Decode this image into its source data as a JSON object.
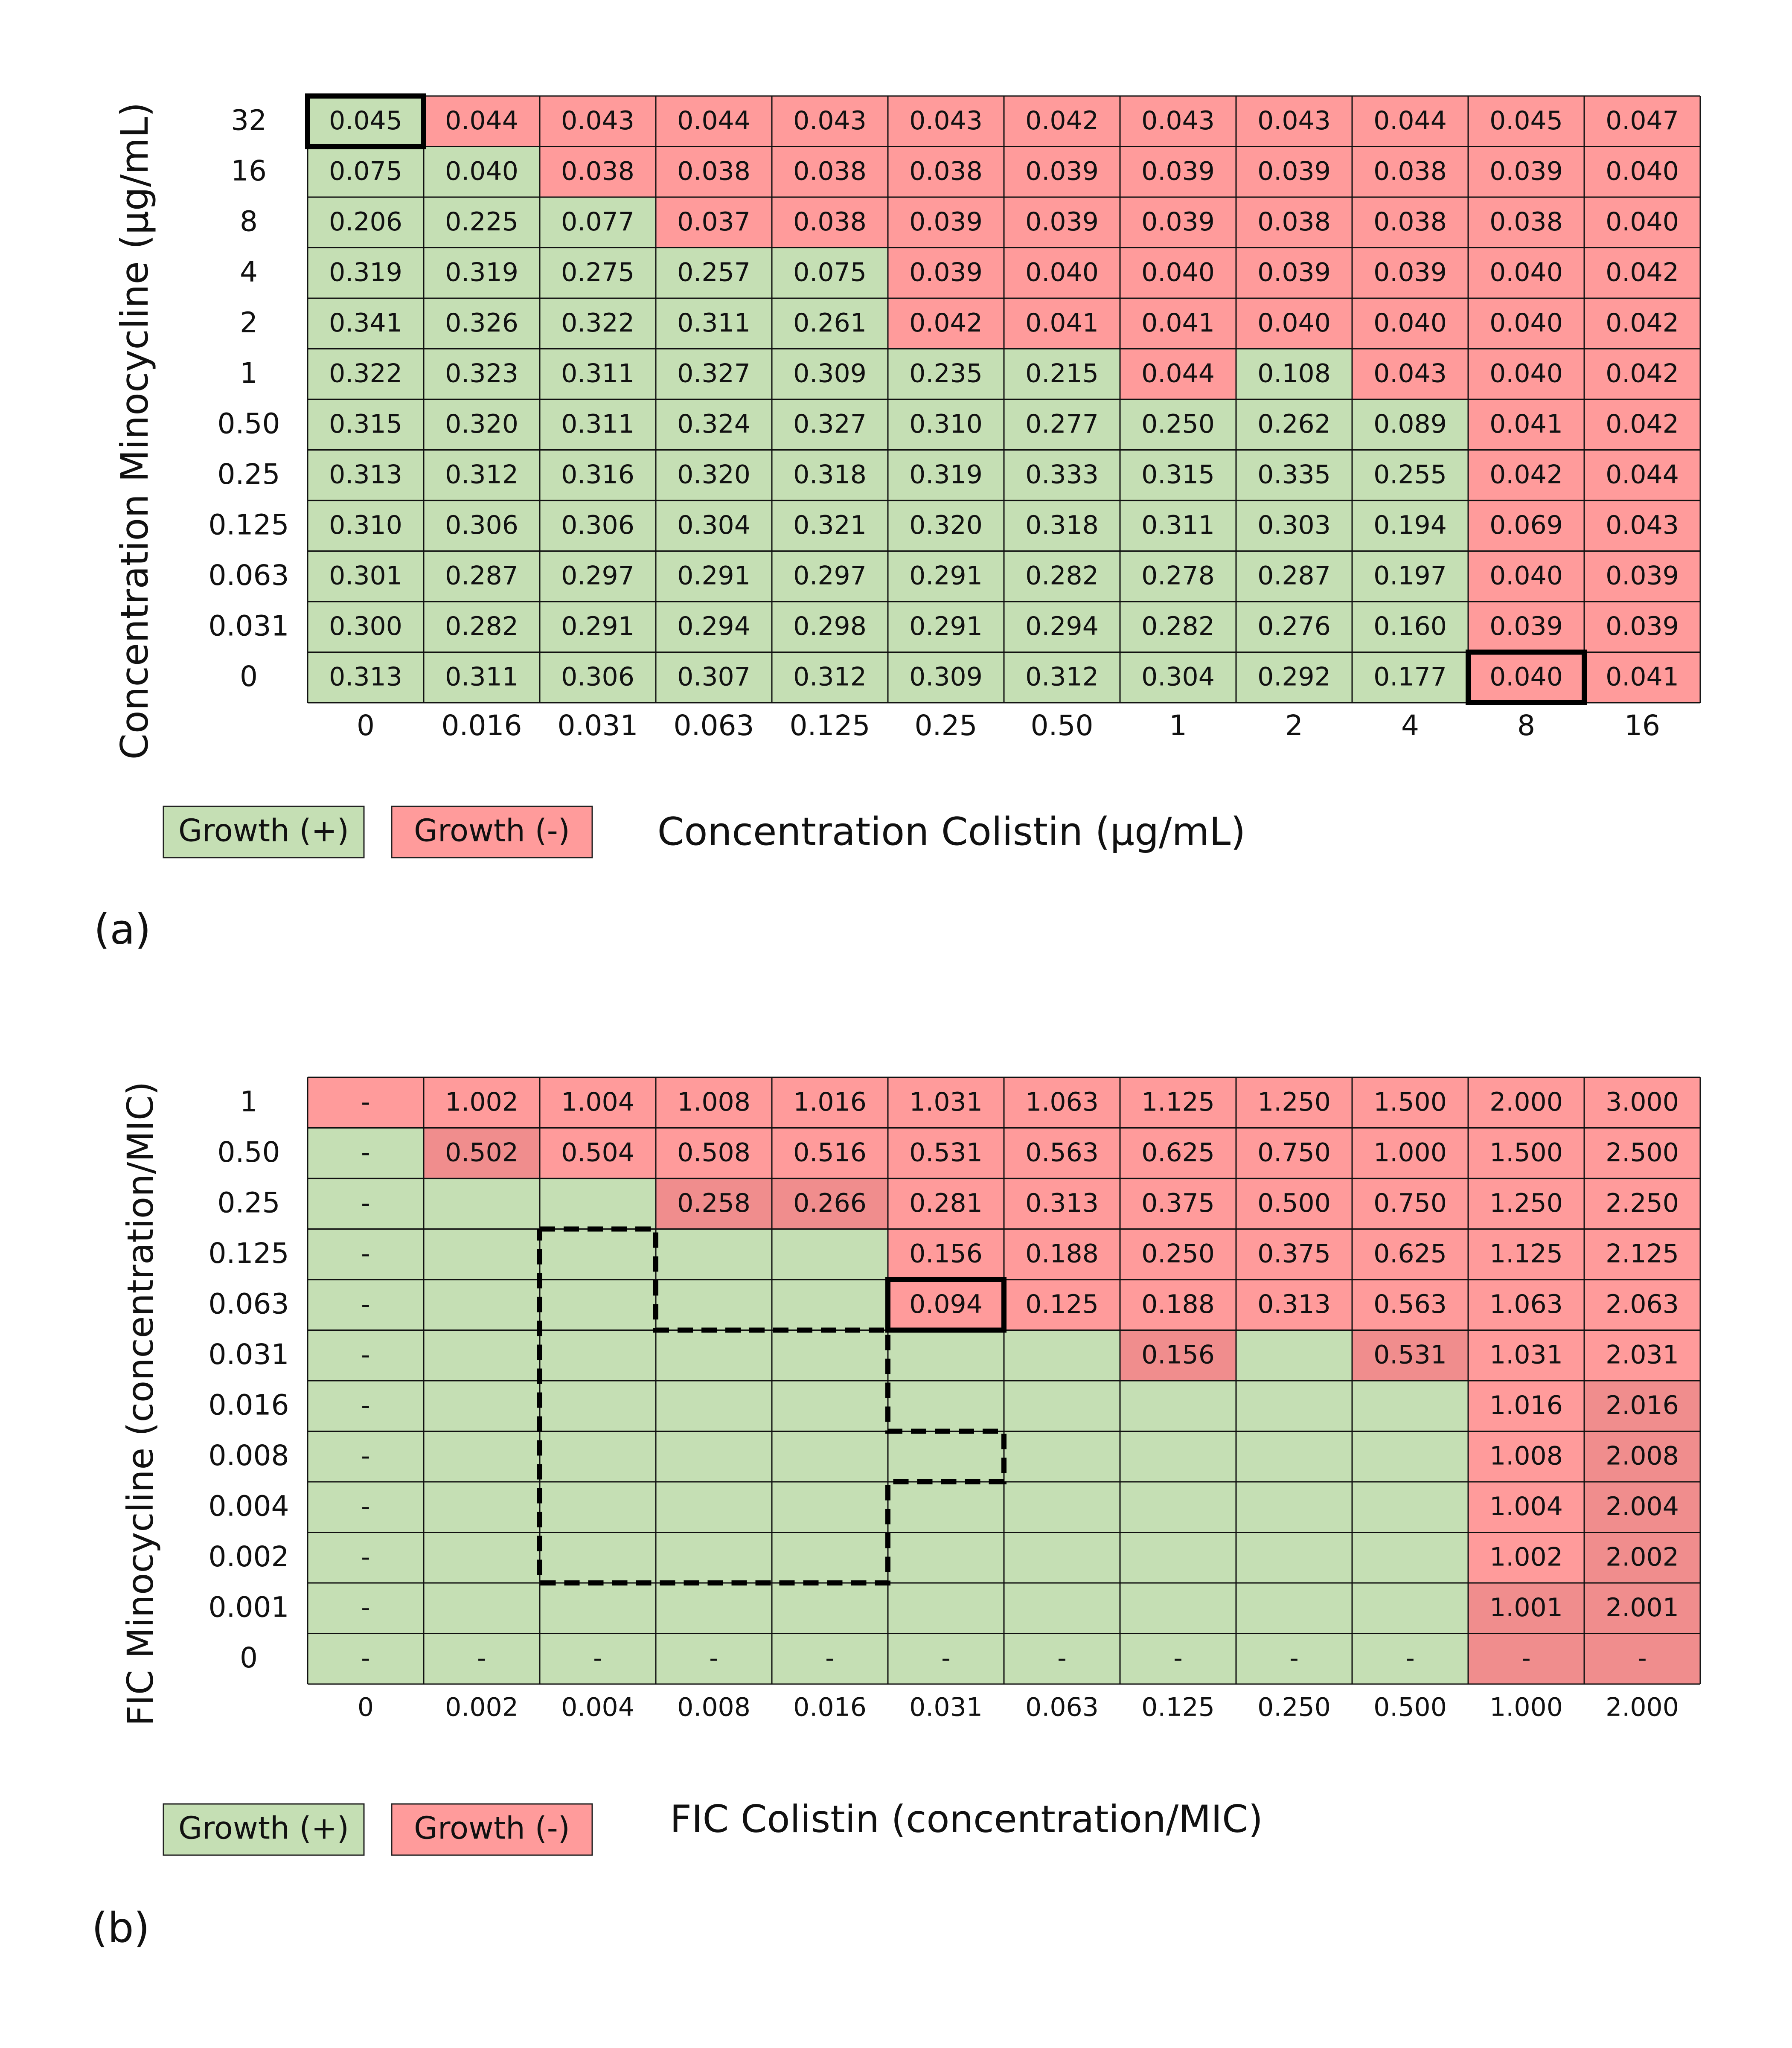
{
  "chart_data": [
    {
      "type": "heatmap",
      "panel_label": "(a)",
      "xlabel": "Concentration Colistin (µg/mL)",
      "ylabel": "Concentration Minocycline (µg/mL)",
      "x_ticks": [
        "0",
        "0.016",
        "0.031",
        "0.063",
        "0.125",
        "0.25",
        "0.50",
        "1",
        "2",
        "4",
        "8",
        "16"
      ],
      "y_ticks": [
        "32",
        "16",
        "8",
        "4",
        "2",
        "1",
        "0.50",
        "0.25",
        "0.125",
        "0.063",
        "0.031",
        "0"
      ],
      "legend": [
        {
          "label": "Growth (+)",
          "color": "#c5dfb4"
        },
        {
          "label": "Growth (-)",
          "color": "#ff9b9b"
        }
      ],
      "colors": {
        "growth_pos": "#c5dfb4",
        "growth_neg": "#ff9b9b",
        "growth_neg_dark": "#f08d8d"
      },
      "values": [
        [
          "0.045",
          "0.044",
          "0.043",
          "0.044",
          "0.043",
          "0.043",
          "0.042",
          "0.043",
          "0.043",
          "0.044",
          "0.045",
          "0.047"
        ],
        [
          "0.075",
          "0.040",
          "0.038",
          "0.038",
          "0.038",
          "0.038",
          "0.039",
          "0.039",
          "0.039",
          "0.038",
          "0.039",
          "0.040"
        ],
        [
          "0.206",
          "0.225",
          "0.077",
          "0.037",
          "0.038",
          "0.039",
          "0.039",
          "0.039",
          "0.038",
          "0.038",
          "0.038",
          "0.040"
        ],
        [
          "0.319",
          "0.319",
          "0.275",
          "0.257",
          "0.075",
          "0.039",
          "0.040",
          "0.040",
          "0.039",
          "0.039",
          "0.040",
          "0.042"
        ],
        [
          "0.341",
          "0.326",
          "0.322",
          "0.311",
          "0.261",
          "0.042",
          "0.041",
          "0.041",
          "0.040",
          "0.040",
          "0.040",
          "0.042"
        ],
        [
          "0.322",
          "0.323",
          "0.311",
          "0.327",
          "0.309",
          "0.235",
          "0.215",
          "0.044",
          "0.108",
          "0.043",
          "0.040",
          "0.042"
        ],
        [
          "0.315",
          "0.320",
          "0.311",
          "0.324",
          "0.327",
          "0.310",
          "0.277",
          "0.250",
          "0.262",
          "0.089",
          "0.041",
          "0.042"
        ],
        [
          "0.313",
          "0.312",
          "0.316",
          "0.320",
          "0.318",
          "0.319",
          "0.333",
          "0.315",
          "0.335",
          "0.255",
          "0.042",
          "0.044"
        ],
        [
          "0.310",
          "0.306",
          "0.306",
          "0.304",
          "0.321",
          "0.320",
          "0.318",
          "0.311",
          "0.303",
          "0.194",
          "0.069",
          "0.043"
        ],
        [
          "0.301",
          "0.287",
          "0.297",
          "0.291",
          "0.297",
          "0.291",
          "0.282",
          "0.278",
          "0.287",
          "0.197",
          "0.040",
          "0.039"
        ],
        [
          "0.300",
          "0.282",
          "0.291",
          "0.294",
          "0.298",
          "0.291",
          "0.294",
          "0.282",
          "0.276",
          "0.160",
          "0.039",
          "0.039"
        ],
        [
          "0.313",
          "0.311",
          "0.306",
          "0.307",
          "0.312",
          "0.309",
          "0.312",
          "0.304",
          "0.292",
          "0.177",
          "0.040",
          "0.041"
        ]
      ],
      "growth": [
        "+------------",
        "++----------",
        "+++---------",
        "+++++-------",
        "+++++-------",
        "+++++++-+---",
        "++++++++++--",
        "++++++++++--",
        "++++++++++--",
        "++++++++++--",
        "++++++++++--",
        "++++++++++--"
      ],
      "shade": [
        "000000000000",
        "000000000000",
        "000000000000",
        "000000000000",
        "000000000000",
        "000000000000",
        "000000000000",
        "000000000000",
        "000000000000",
        "000000000000",
        "000000000000",
        "000000000000"
      ],
      "highlight_cells": [
        {
          "row": 0,
          "col": 0
        },
        {
          "row": 11,
          "col": 10
        }
      ],
      "dashed_outline": []
    },
    {
      "type": "heatmap",
      "panel_label": "(b)",
      "xlabel": "FIC Colistin (concentration/MIC)",
      "ylabel": "FIC Minocycline (concentration/MIC)",
      "x_ticks": [
        "0",
        "0.002",
        "0.004",
        "0.008",
        "0.016",
        "0.031",
        "0.063",
        "0.125",
        "0.250",
        "0.500",
        "1.000",
        "2.000"
      ],
      "y_ticks": [
        "1",
        "0.50",
        "0.25",
        "0.125",
        "0.063",
        "0.031",
        "0.016",
        "0.008",
        "0.004",
        "0.002",
        "0.001",
        "0"
      ],
      "legend": [
        {
          "label": "Growth (+)",
          "color": "#c5dfb4"
        },
        {
          "label": "Growth (-)",
          "color": "#ff9b9b"
        }
      ],
      "colors": {
        "growth_pos": "#c5dfb4",
        "growth_neg": "#ff9b9b",
        "growth_neg_dark": "#f08d8d"
      },
      "values": [
        [
          "-",
          "1.002",
          "1.004",
          "1.008",
          "1.016",
          "1.031",
          "1.063",
          "1.125",
          "1.250",
          "1.500",
          "2.000",
          "3.000"
        ],
        [
          "-",
          "0.502",
          "0.504",
          "0.508",
          "0.516",
          "0.531",
          "0.563",
          "0.625",
          "0.750",
          "1.000",
          "1.500",
          "2.500"
        ],
        [
          "-",
          "",
          "",
          "0.258",
          "0.266",
          "0.281",
          "0.313",
          "0.375",
          "0.500",
          "0.750",
          "1.250",
          "2.250"
        ],
        [
          "-",
          "",
          "",
          "",
          "",
          "0.156",
          "0.188",
          "0.250",
          "0.375",
          "0.625",
          "1.125",
          "2.125"
        ],
        [
          "-",
          "",
          "",
          "",
          "",
          "0.094",
          "0.125",
          "0.188",
          "0.313",
          "0.563",
          "1.063",
          "2.063"
        ],
        [
          "-",
          "",
          "",
          "",
          "",
          "",
          "",
          "0.156",
          "",
          "0.531",
          "1.031",
          "2.031"
        ],
        [
          "-",
          "",
          "",
          "",
          "",
          "",
          "",
          "",
          "",
          "",
          "1.016",
          "2.016"
        ],
        [
          "-",
          "",
          "",
          "",
          "",
          "",
          "",
          "",
          "",
          "",
          "1.008",
          "2.008"
        ],
        [
          "-",
          "",
          "",
          "",
          "",
          "",
          "",
          "",
          "",
          "",
          "1.004",
          "2.004"
        ],
        [
          "-",
          "",
          "",
          "",
          "",
          "",
          "",
          "",
          "",
          "",
          "1.002",
          "2.002"
        ],
        [
          "-",
          "",
          "",
          "",
          "",
          "",
          "",
          "",
          "",
          "",
          "1.001",
          "2.001"
        ],
        [
          "-",
          "-",
          "-",
          "-",
          "-",
          "-",
          "-",
          "-",
          "-",
          "-",
          "-",
          "-"
        ]
      ],
      "growth": [
        "------------",
        "+-----------",
        "+++---------",
        "+++++-------",
        "+++++-------",
        "+++++++-+---",
        "++++++++++--",
        "++++++++++--",
        "++++++++++--",
        "++++++++++--",
        "++++++++++--",
        "++++++++++--"
      ],
      "shade": [
        "000000000000",
        "010000000000",
        "000110000000",
        "000000000000",
        "000000000000",
        "000000010100",
        "000000000001",
        "000000000001",
        "000000000001",
        "000000000001",
        "000000000011",
        "000000000011"
      ],
      "highlight_cells": [
        {
          "row": 4,
          "col": 5
        }
      ],
      "dashed_outline": [
        [
          3,
          2
        ],
        [
          3,
          3
        ],
        [
          5,
          3
        ],
        [
          5,
          5
        ],
        [
          7,
          5
        ],
        [
          7,
          6
        ],
        [
          8,
          6
        ],
        [
          8,
          5
        ],
        [
          10,
          5
        ],
        [
          10,
          2
        ],
        [
          3,
          2
        ]
      ]
    }
  ]
}
